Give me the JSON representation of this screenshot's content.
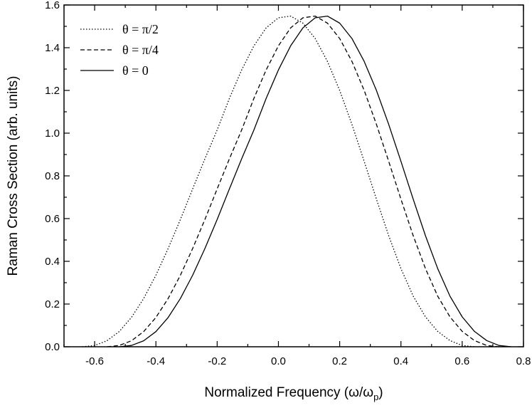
{
  "chart_data": {
    "type": "line",
    "xlabel": "Normalized Frequency (ω/ω",
    "xlabel_subscript": "p",
    "xlabel_close": ")",
    "ylabel": "Raman Cross Section (arb. units)",
    "xlim": [
      -0.7,
      0.8
    ],
    "ylim": [
      0.0,
      1.6
    ],
    "x_ticks": [
      -0.6,
      -0.4,
      -0.2,
      0.0,
      0.2,
      0.4,
      0.6,
      0.8
    ],
    "x_tick_labels": [
      "-0.6",
      "-0.4",
      "-0.2",
      "0.0",
      "0.2",
      "0.4",
      "0.6",
      "0.8"
    ],
    "y_ticks": [
      0.0,
      0.2,
      0.4,
      0.6,
      0.8,
      1.0,
      1.2,
      1.4,
      1.6
    ],
    "y_tick_labels": [
      "0.0",
      "0.2",
      "0.4",
      "0.6",
      "0.8",
      "1.0",
      "1.2",
      "1.4",
      "1.6"
    ],
    "grid": false,
    "legend_position": "top-left",
    "series": [
      {
        "name": "θ = π/2",
        "line_style": "dotted",
        "color": "#000000",
        "x": [
          -0.64,
          -0.6,
          -0.56,
          -0.52,
          -0.48,
          -0.44,
          -0.4,
          -0.36,
          -0.32,
          -0.28,
          -0.24,
          -0.2,
          -0.16,
          -0.12,
          -0.08,
          -0.04,
          0.0,
          0.04,
          0.08,
          0.12,
          0.16,
          0.2,
          0.24,
          0.28,
          0.32,
          0.36,
          0.4,
          0.44,
          0.48,
          0.52,
          0.56,
          0.6,
          0.64
        ],
        "y": [
          0.0,
          0.006,
          0.028,
          0.071,
          0.137,
          0.226,
          0.335,
          0.46,
          0.596,
          0.739,
          0.88,
          1.015,
          1.163,
          1.296,
          1.409,
          1.493,
          1.54,
          1.548,
          1.515,
          1.443,
          1.336,
          1.2,
          1.041,
          0.868,
          0.691,
          0.52,
          0.366,
          0.237,
          0.14,
          0.072,
          0.029,
          0.006,
          0.0
        ]
      },
      {
        "name": "θ = π/4",
        "line_style": "dashed",
        "color": "#000000",
        "x": [
          -0.56,
          -0.52,
          -0.48,
          -0.44,
          -0.4,
          -0.36,
          -0.32,
          -0.28,
          -0.24,
          -0.2,
          -0.16,
          -0.12,
          -0.08,
          -0.04,
          0.0,
          0.04,
          0.08,
          0.12,
          0.16,
          0.2,
          0.24,
          0.28,
          0.32,
          0.36,
          0.4,
          0.44,
          0.48,
          0.52,
          0.56,
          0.6,
          0.64,
          0.68,
          0.72
        ],
        "y": [
          0.0,
          0.006,
          0.028,
          0.071,
          0.137,
          0.226,
          0.335,
          0.46,
          0.596,
          0.739,
          0.88,
          1.015,
          1.163,
          1.296,
          1.409,
          1.493,
          1.54,
          1.548,
          1.515,
          1.443,
          1.336,
          1.2,
          1.041,
          0.868,
          0.691,
          0.52,
          0.366,
          0.237,
          0.14,
          0.072,
          0.029,
          0.006,
          0.0
        ]
      },
      {
        "name": "θ = 0",
        "line_style": "solid",
        "color": "#000000",
        "x": [
          -0.52,
          -0.48,
          -0.44,
          -0.4,
          -0.36,
          -0.32,
          -0.28,
          -0.24,
          -0.2,
          -0.16,
          -0.12,
          -0.08,
          -0.04,
          0.0,
          0.04,
          0.08,
          0.12,
          0.16,
          0.2,
          0.24,
          0.28,
          0.32,
          0.36,
          0.4,
          0.44,
          0.48,
          0.52,
          0.56,
          0.6,
          0.64,
          0.68,
          0.72,
          0.76
        ],
        "y": [
          0.0,
          0.006,
          0.028,
          0.071,
          0.137,
          0.226,
          0.335,
          0.46,
          0.596,
          0.739,
          0.88,
          1.015,
          1.163,
          1.296,
          1.409,
          1.493,
          1.54,
          1.548,
          1.515,
          1.443,
          1.336,
          1.2,
          1.041,
          0.868,
          0.691,
          0.52,
          0.366,
          0.237,
          0.14,
          0.072,
          0.029,
          0.006,
          0.0
        ]
      }
    ]
  }
}
